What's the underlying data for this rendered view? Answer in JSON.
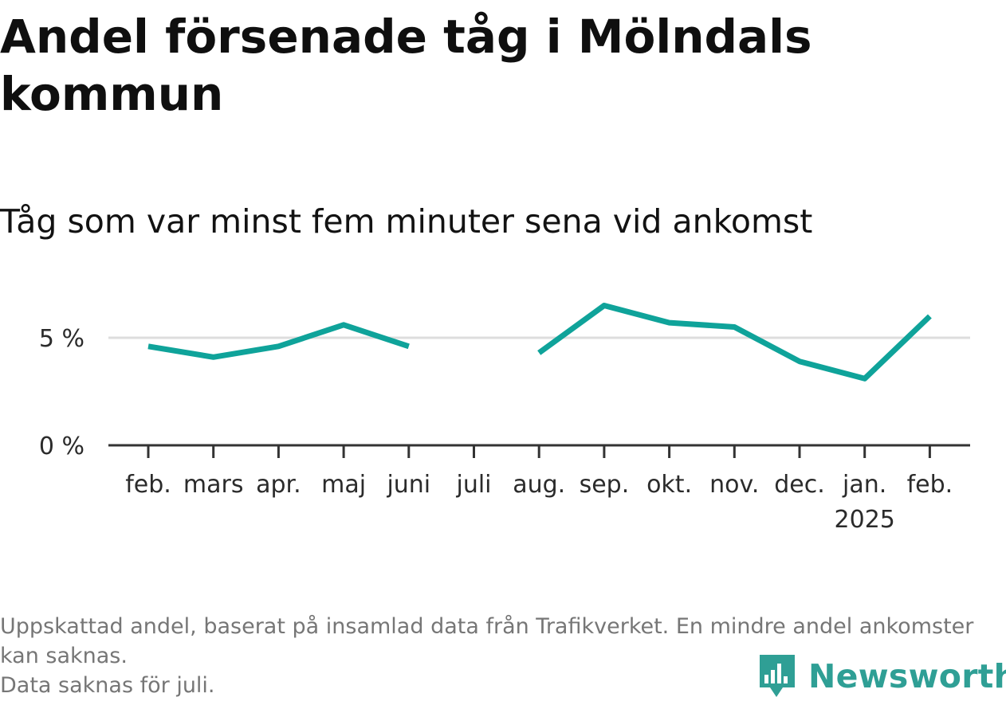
{
  "title": "Andel försenade tåg i Mölndals kommun",
  "subtitle": "Tåg som var minst fem minuter sena vid ankomst",
  "footnote": {
    "line1": "Uppskattad andel, baserat på insamlad data från Trafikverket. En mindre andel ankomster kan saknas.",
    "line2": "Data saknas för juli."
  },
  "logo": {
    "text": "Newsworthy",
    "icon": "bar-chart-speech-bubble-icon"
  },
  "colors": {
    "line": "#0fa39a",
    "grid": "#dddddd",
    "axis": "#333333",
    "logo": "#2f9f95"
  },
  "chart_data": {
    "type": "line",
    "categories": [
      "feb.",
      "mars",
      "apr.",
      "maj",
      "juni",
      "juli",
      "aug.",
      "sep.",
      "okt.",
      "nov.",
      "dec.",
      "jan.",
      "feb."
    ],
    "year_label": {
      "text": "2025",
      "category_index": 11
    },
    "series": [
      {
        "values": [
          4.6,
          4.1,
          4.6,
          5.6,
          4.6,
          null,
          4.3,
          6.5,
          5.7,
          5.5,
          3.9,
          3.1,
          6.0
        ]
      }
    ],
    "y_ticks": [
      {
        "value": 0,
        "label": "0 %"
      },
      {
        "value": 5,
        "label": "5 %"
      }
    ],
    "ylim": [
      0,
      7
    ],
    "gridlines": true,
    "legend": "none"
  }
}
